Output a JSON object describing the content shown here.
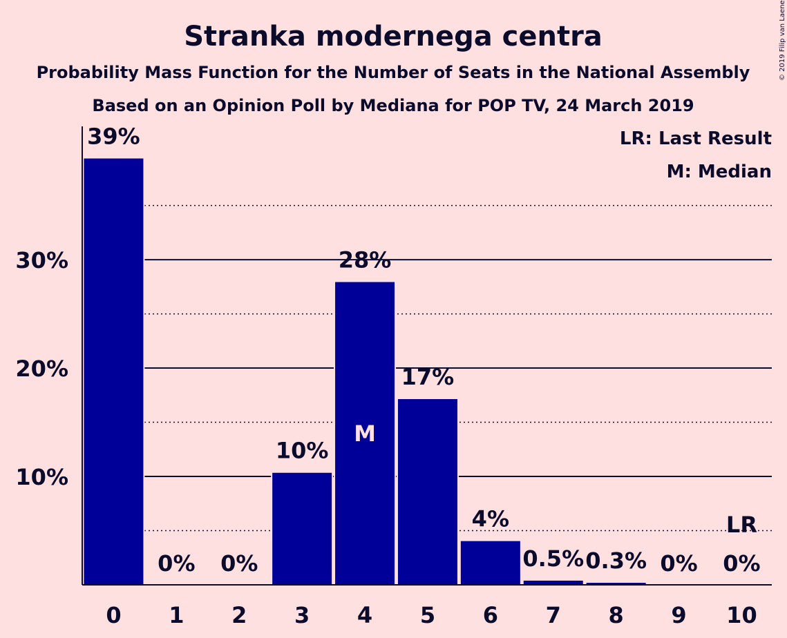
{
  "title": "Stranka modernega centra",
  "subtitle1": "Probability Mass Function for the Number of Seats in the National Assembly",
  "subtitle2": "Based on an Opinion Poll by Mediana for POP TV, 24 March 2019",
  "legend": {
    "lr": "LR: Last Result",
    "m": "M: Median"
  },
  "copyright": "© 2019 Filip van Laenen",
  "colors": {
    "background": "#ffe0e0",
    "bar": "#000099",
    "text": "#0b0b2b"
  },
  "chart_data": {
    "type": "bar",
    "categories": [
      "0",
      "1",
      "2",
      "3",
      "4",
      "5",
      "6",
      "7",
      "8",
      "9",
      "10"
    ],
    "values": [
      39.4,
      0,
      0,
      10.4,
      28,
      17.2,
      4.1,
      0.45,
      0.25,
      0,
      0
    ],
    "data_labels": [
      "39%",
      "0%",
      "0%",
      "10%",
      "28%",
      "17%",
      "4%",
      "0.5%",
      "0.3%",
      "0%",
      "0%"
    ],
    "ylim": [
      0,
      42.3
    ],
    "yticks": [
      10,
      20,
      30
    ],
    "ytick_labels": [
      "10%",
      "20%",
      "30%"
    ],
    "minor_gridlines": [
      5,
      15,
      25,
      35
    ],
    "median_index": 4,
    "median_label": "M",
    "last_result_index": 10,
    "last_result_label": "LR",
    "legend_position": "top-right"
  }
}
